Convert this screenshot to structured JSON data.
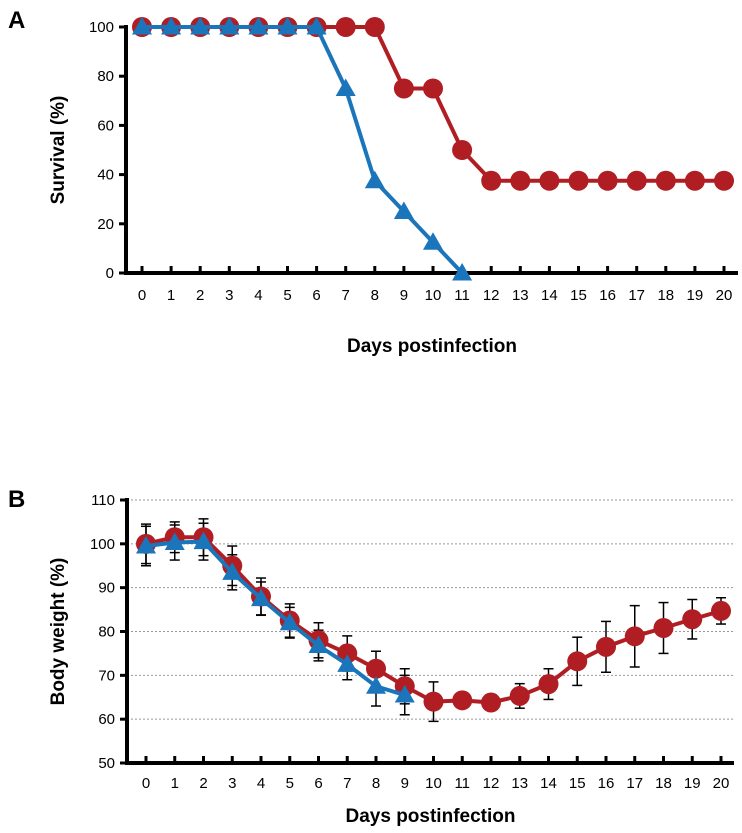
{
  "colors": {
    "red": "#b01e24",
    "blue": "#1b75bb",
    "axis": "#000000",
    "grid": "#999999"
  },
  "chart_data": [
    {
      "panel": "A",
      "type": "line",
      "xlabel": "Days postinfection",
      "ylabel": "Survival (%)",
      "x": [
        0,
        1,
        2,
        3,
        4,
        5,
        6,
        7,
        8,
        9,
        10,
        11,
        12,
        13,
        14,
        15,
        16,
        17,
        18,
        19,
        20
      ],
      "xlim": [
        0,
        20
      ],
      "ylim": [
        0,
        100
      ],
      "yticks": [
        0,
        20,
        40,
        60,
        80,
        100
      ],
      "grid": false,
      "series": [
        {
          "name": "red-circles",
          "marker": "circle",
          "color": "#b01e24",
          "x": [
            0,
            1,
            2,
            3,
            4,
            5,
            6,
            7,
            8,
            9,
            10,
            11,
            12,
            13,
            14,
            15,
            16,
            17,
            18,
            19,
            20
          ],
          "values": [
            100,
            100,
            100,
            100,
            100,
            100,
            100,
            100,
            100,
            75,
            75,
            50,
            37.5,
            37.5,
            37.5,
            37.5,
            37.5,
            37.5,
            37.5,
            37.5,
            37.5
          ]
        },
        {
          "name": "blue-triangles",
          "marker": "triangle",
          "color": "#1b75bb",
          "x": [
            0,
            1,
            2,
            3,
            4,
            5,
            6,
            7,
            8,
            9,
            10,
            11
          ],
          "values": [
            100,
            100,
            100,
            100,
            100,
            100,
            100,
            75,
            37.5,
            25,
            12.5,
            0
          ]
        }
      ]
    },
    {
      "panel": "B",
      "type": "line",
      "xlabel": "Days postinfection",
      "ylabel": "Body weight (%)",
      "x": [
        0,
        1,
        2,
        3,
        4,
        5,
        6,
        7,
        8,
        9,
        10,
        11,
        12,
        13,
        14,
        15,
        16,
        17,
        18,
        19,
        20
      ],
      "xlim": [
        0,
        20
      ],
      "ylim": [
        50,
        110
      ],
      "yticks": [
        50,
        60,
        70,
        80,
        90,
        100,
        110
      ],
      "grid": true,
      "series": [
        {
          "name": "red-circles",
          "marker": "circle",
          "color": "#b01e24",
          "x": [
            0,
            1,
            2,
            3,
            4,
            5,
            6,
            7,
            8,
            9,
            10,
            11,
            12,
            13,
            14,
            15,
            16,
            17,
            18,
            19,
            20
          ],
          "values": [
            100,
            101.5,
            101.5,
            95,
            88,
            82.5,
            78,
            75,
            71.5,
            67.5,
            64,
            64.3,
            63.8,
            65.3,
            68,
            73.2,
            76.5,
            78.9,
            80.8,
            82.8,
            84.7
          ],
          "errors": [
            4.5,
            3.5,
            4.2,
            4.5,
            4.2,
            3.8,
            4.0,
            4.0,
            4.0,
            4.0,
            4.5,
            0,
            0,
            2.8,
            3.5,
            5.5,
            5.8,
            7.0,
            5.8,
            4.5,
            3.0
          ]
        },
        {
          "name": "blue-triangles",
          "marker": "triangle",
          "color": "#1b75bb",
          "x": [
            0,
            1,
            2,
            3,
            4,
            5,
            6,
            7,
            8,
            9
          ],
          "values": [
            99.5,
            100.3,
            100.5,
            93.5,
            87.5,
            82,
            76.8,
            72.5,
            67.5,
            65.5
          ],
          "errors": [
            4.5,
            4.0,
            4.2,
            4.0,
            3.8,
            3.5,
            3.5,
            3.5,
            4.5,
            4.5
          ]
        }
      ]
    }
  ]
}
